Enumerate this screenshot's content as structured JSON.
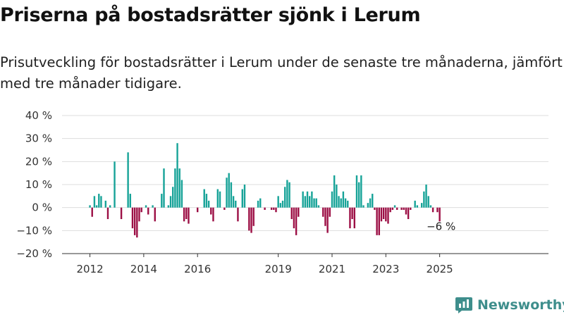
{
  "header": {
    "title": "Priserna på bostadsrätter sjönk i Lerum",
    "subtitle": "Prisutveckling för bostadsrätter i Lerum under de senaste tre månaderna, jämfört med tre månader tidigare."
  },
  "brand": {
    "name": "Newsworthy",
    "icon": "newsworthy-logo-icon",
    "color": "#3e8e8c"
  },
  "colors": {
    "positive": "#17a398",
    "negative": "#9c0f45",
    "grid": "#dddddd",
    "axis": "#333333"
  },
  "chart_data": {
    "type": "bar",
    "title": "",
    "xlabel": "",
    "ylabel": "",
    "ylim": [
      -20,
      40
    ],
    "yticks": [
      -20,
      -10,
      0,
      10,
      20,
      30,
      40
    ],
    "ytick_labels": [
      "−20 %",
      "−10 %",
      "0 %",
      "10 %",
      "20 %",
      "30 %",
      "40 %"
    ],
    "xticks": [
      2012,
      2014,
      2016,
      2019,
      2021,
      2023,
      2025
    ],
    "xtick_labels": [
      "2012",
      "2014",
      "2016",
      "2019",
      "2021",
      "2023",
      "2025"
    ],
    "grid": true,
    "start": "2011-11",
    "frequency": "monthly",
    "annotation": {
      "text": "−6 %",
      "value": -6
    },
    "series": [
      {
        "values": [
          0,
          0,
          1,
          -4,
          5,
          1,
          6,
          5,
          0,
          3,
          -5,
          1,
          0,
          20,
          0,
          0,
          -5,
          0,
          0,
          24,
          6,
          -9,
          -12,
          -13,
          -6,
          -2,
          0,
          1,
          -3,
          0,
          1,
          -6,
          0,
          0,
          6,
          17,
          0,
          1,
          5,
          9,
          17,
          28,
          17,
          12,
          -6,
          -5,
          -7,
          0,
          0,
          0,
          -2,
          0,
          0,
          8,
          6,
          3,
          -3,
          -6,
          0,
          8,
          7,
          0,
          -1,
          13,
          15,
          11,
          5,
          3,
          -6,
          0,
          8,
          10,
          0,
          -10,
          -11,
          -8,
          0,
          3,
          4,
          0,
          -1,
          0,
          0,
          -1,
          -1,
          -2,
          5,
          2,
          3,
          9,
          12,
          11,
          -5,
          -9,
          -12,
          -4,
          0,
          7,
          5,
          7,
          5,
          7,
          4,
          4,
          1,
          0,
          -4,
          -8,
          -11,
          -4,
          7,
          14,
          10,
          5,
          4,
          7,
          4,
          3,
          -9,
          -5,
          -9,
          14,
          11,
          14,
          1,
          0,
          2,
          4,
          6,
          -1,
          -12,
          -12,
          -6,
          -5,
          -6,
          -7,
          -2,
          -1,
          1,
          -1,
          0,
          -1,
          -1,
          -3,
          -5,
          -1,
          0,
          3,
          1,
          0,
          2,
          7,
          10,
          5,
          1,
          -2,
          0,
          -2,
          -6
        ]
      }
    ]
  }
}
